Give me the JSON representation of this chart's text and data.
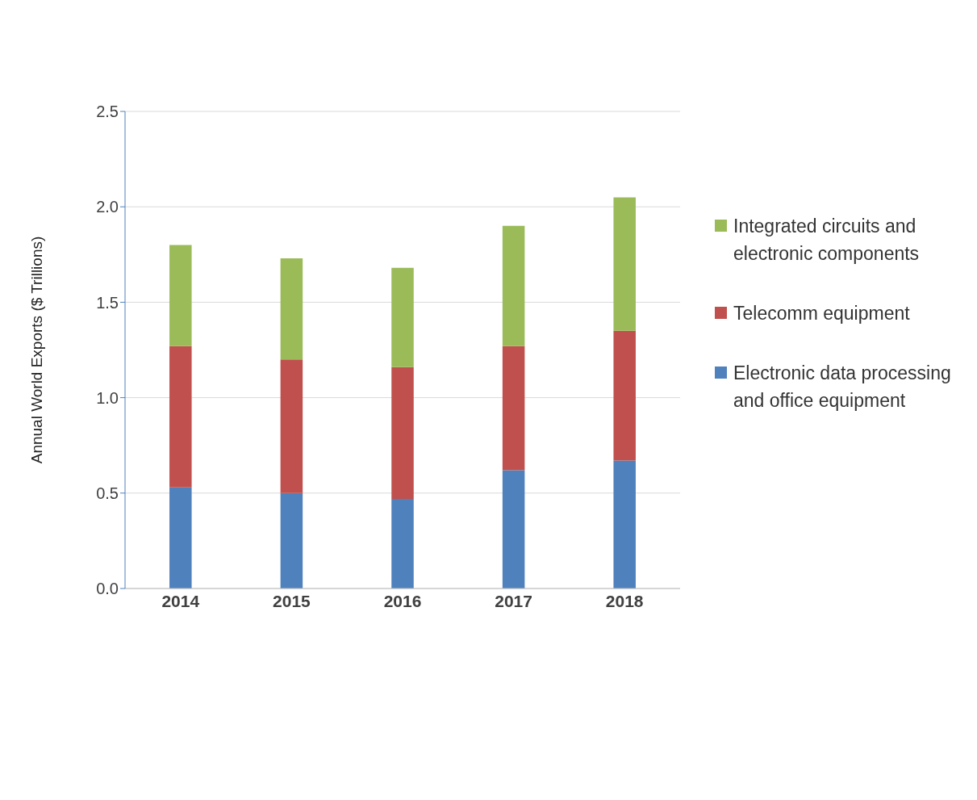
{
  "chart_data": {
    "type": "bar",
    "stacked": true,
    "ylabel": "Annual World Exports ($ Trillions)",
    "categories": [
      "2014",
      "2015",
      "2016",
      "2017",
      "2018"
    ],
    "series": [
      {
        "name": "Electronic data processing and office equipment",
        "color": "#4f81bd",
        "values": [
          0.53,
          0.5,
          0.47,
          0.62,
          0.67
        ]
      },
      {
        "name": "Telecomm equipment",
        "color": "#c0504d",
        "values": [
          0.74,
          0.7,
          0.69,
          0.65,
          0.68
        ]
      },
      {
        "name": "Integrated circuits and electronic components",
        "color": "#9bbb59",
        "values": [
          0.53,
          0.53,
          0.52,
          0.63,
          0.7
        ]
      }
    ],
    "ylim": [
      0,
      2.5
    ],
    "yticks": [
      {
        "value": 0,
        "label": "0.0"
      },
      {
        "value": 0.5,
        "label": "0.5"
      },
      {
        "value": 1,
        "label": "1.0"
      },
      {
        "value": 1.5,
        "label": "1.5"
      },
      {
        "value": 2,
        "label": "2.0"
      },
      {
        "value": 2.5,
        "label": "2.5"
      }
    ],
    "grid": "y",
    "legend": "right"
  }
}
